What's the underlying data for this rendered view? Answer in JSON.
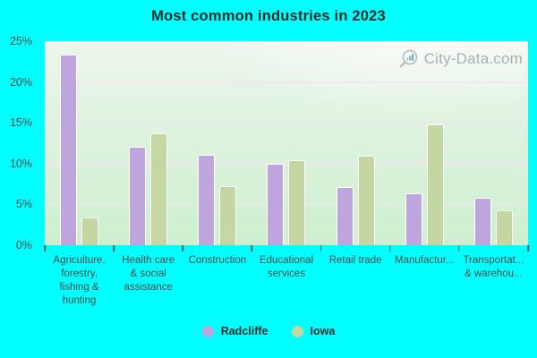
{
  "title": "Most common industries in 2023",
  "watermark": {
    "icon": "magnifier-bar-chart-icon",
    "text": "City-Data.com"
  },
  "colors": {
    "background": "#00ffff",
    "plot_gradient_top": "#ecf6ec",
    "plot_gradient_bottom": "#cdefcf",
    "gridline": "#f2e6f2",
    "radcliffe": "#bfa5dd",
    "iowa": "#c4d6a1",
    "bar_border": "#ffffff",
    "title_text": "#212b2b",
    "axis_text": "#414b4b",
    "legend_text": "#2d2d2d",
    "watermark_text": "#9aa4aa",
    "tick_mark": "#4e5e5e"
  },
  "chart_data": {
    "type": "bar",
    "title": "Most common industries in 2023",
    "categories": [
      "Agriculture,\nforestry,\nfishing &\nhunting",
      "Health care\n& social\nassistance",
      "Construction",
      "Educational\nservices",
      "Retail trade",
      "Manufactur...",
      "Transportat...\n& warehou..."
    ],
    "series": [
      {
        "name": "Radcliffe",
        "color": "#bfa5dd",
        "values": [
          23.4,
          12.1,
          11.1,
          10.0,
          7.1,
          6.4,
          5.8
        ]
      },
      {
        "name": "Iowa",
        "color": "#c4d6a1",
        "values": [
          3.4,
          13.7,
          7.2,
          10.4,
          11.0,
          14.8,
          4.3
        ]
      }
    ],
    "xlabel": "",
    "ylabel": "",
    "ylim": [
      0,
      25
    ],
    "ytick_labels": [
      "0%",
      "5%",
      "10%",
      "15%",
      "20%",
      "25%"
    ],
    "grid": true,
    "legend_position": "bottom"
  },
  "legend": {
    "items": [
      {
        "label": "Radcliffe",
        "color": "#bfa5dd"
      },
      {
        "label": "Iowa",
        "color": "#c4d6a1"
      }
    ]
  }
}
